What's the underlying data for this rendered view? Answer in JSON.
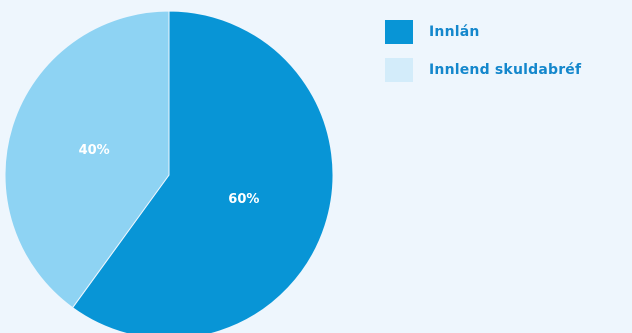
{
  "chart_data": {
    "type": "pie",
    "slices": [
      {
        "name": "Innlán",
        "value": 60,
        "label": "60%",
        "color": "#0895d6"
      },
      {
        "name": "Innlend skuldabréf",
        "value": 40,
        "label": "40%",
        "color": "#8ed3f3"
      }
    ],
    "legend": {
      "placement": "top-right",
      "items": [
        {
          "label": "Innlán",
          "color": "#0895d6"
        },
        {
          "label": "Innlend skuldabréf",
          "color": "#d3ecfa"
        }
      ]
    },
    "title": "",
    "background": "#eef6fd"
  }
}
